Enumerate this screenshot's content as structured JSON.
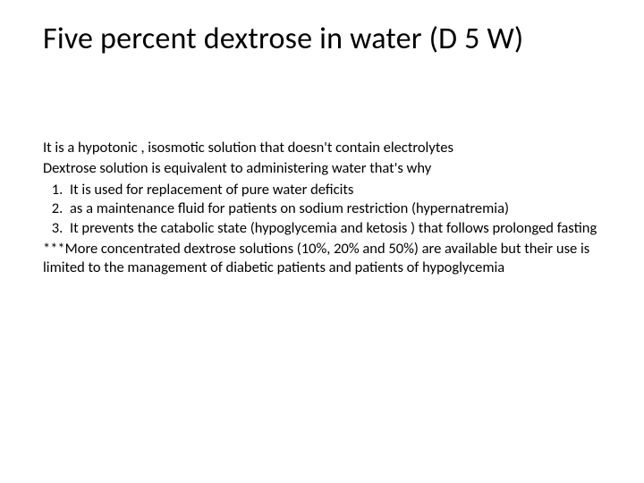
{
  "title": "Five percent dextrose in water (D 5 W)",
  "intro_line1": "It is a hypotonic , isosmotic solution that doesn't contain electrolytes",
  "intro_line2": "Dextrose solution is equivalent to administering water that's why",
  "items": {
    "0": "It is used for replacement of pure water deficits",
    "1": "as a maintenance fluid for patients on sodium restriction (hypernatremia)",
    "2": "It prevents the catabolic state (hypoglycemia and ketosis ) that follows prolonged fasting"
  },
  "note": "***More concentrated dextrose solutions (10%, 20% and 50%) are available but their use is limited to the management of diabetic patients and patients of hypoglycemia",
  "style": {
    "background_color": "#ffffff",
    "text_color": "#000000",
    "title_fontsize_pt": 26,
    "body_fontsize_pt": 12,
    "font_family": "Calibri",
    "title_weight": 400,
    "body_weight": 400
  }
}
